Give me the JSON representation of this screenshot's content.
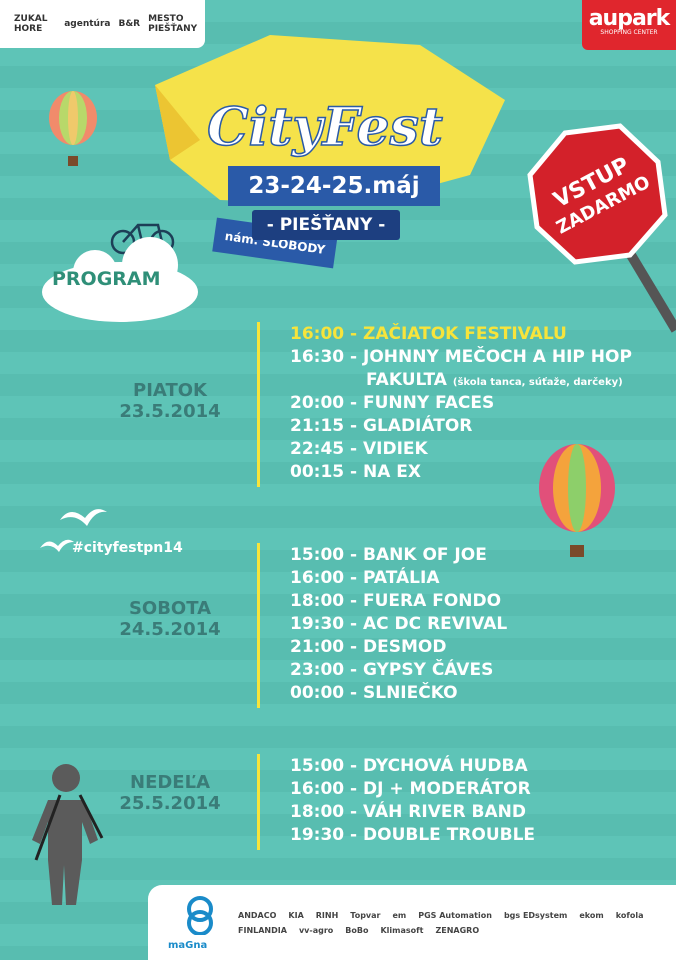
{
  "header": {
    "logos": [
      "ZUKAL HORE",
      "agentúra",
      "B&R",
      "MESTO PIEŠŤANY"
    ],
    "aupark": "aupark",
    "aupark_sub": "SHOPPING CENTER"
  },
  "title": "CityFest",
  "dates": "23-24-25.máj",
  "town": "- PIEŠŤANY -",
  "square": "nám. SLOBODY",
  "stop_sign": [
    "VSTUP",
    "ZADARMO"
  ],
  "program": "PROGRAM",
  "hashtag": "#cityfestpn14",
  "days": [
    {
      "name": "PIATOK",
      "date": "23.5.2014",
      "events": [
        "16:00 - ZAČIATOK FESTIVALU",
        "16:30 - JOHNNY MEČOCH A HIP HOP",
        "FAKULTA",
        "20:00 - FUNNY FACES",
        "21:15 - GLADIÁTOR",
        "22:45 - VIDIEK",
        "00:15 - NA EX"
      ],
      "note": "(škola tanca, súťaže, darčeky)"
    },
    {
      "name": "SOBOTA",
      "date": "24.5.2014",
      "events": [
        "15:00 - BANK OF JOE",
        "16:00 - PATÁLIA",
        "18:00 - FUERA FONDO",
        "19:30 - AC DC REVIVAL",
        "21:00 - DESMOD",
        "23:00 - GYPSY ČÁVES",
        "00:00 - SLNIEČKO"
      ]
    },
    {
      "name": "NEDEĽA",
      "date": "25.5.2014",
      "events": [
        "15:00 - DYCHOVÁ HUDBA",
        "16:00 - DJ + MODERÁTOR",
        "18:00 - VÁH RIVER BAND",
        "19:30 - DOUBLE TROUBLE"
      ]
    }
  ],
  "sponsors": {
    "main": "maGna",
    "list": [
      "ANDACO",
      "KIA",
      "RINH",
      "Topvar",
      "em",
      "PGS Automation",
      "bgs EDsystem",
      "ekom",
      "kofola",
      "FINLANDIA",
      "vv-agro",
      "BoBo",
      "Klimasoft",
      "ZENAGRO"
    ]
  }
}
